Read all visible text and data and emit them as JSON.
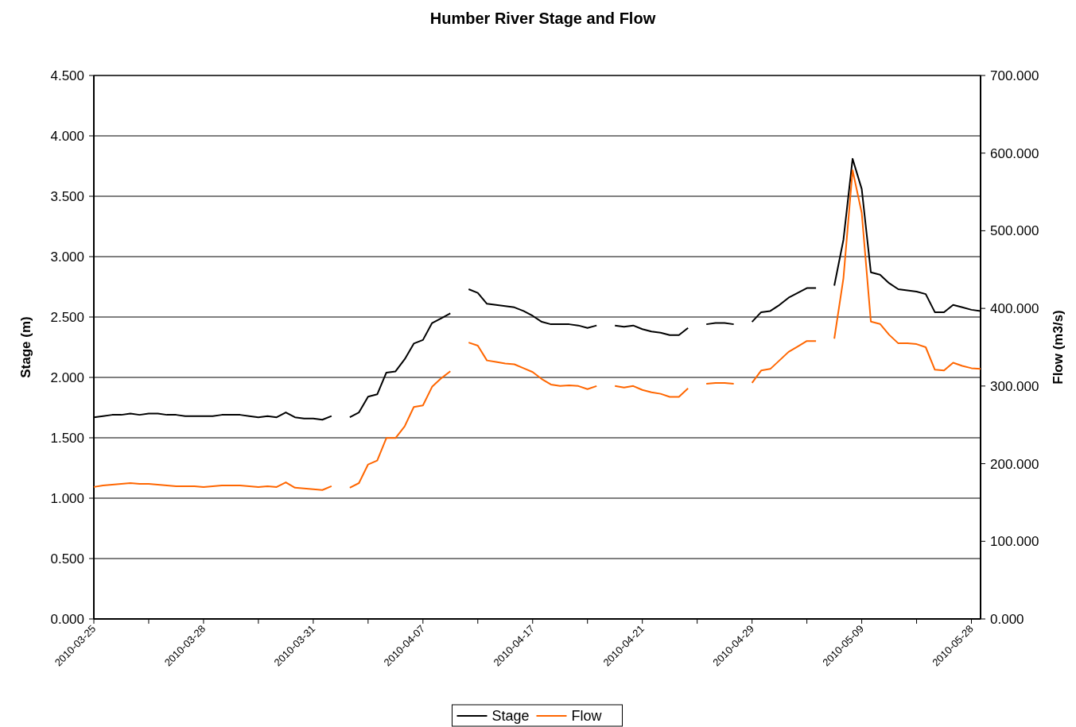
{
  "chart_data": {
    "type": "line",
    "title": "Humber River Stage and Flow",
    "ylabel": "Stage (m)",
    "y2label": "Flow (m3/s)",
    "categories": [
      "2010-03-25",
      null,
      null,
      null,
      null,
      null,
      null,
      null,
      null,
      null,
      null,
      null,
      "2010-03-28",
      null,
      null,
      null,
      null,
      null,
      null,
      null,
      null,
      null,
      null,
      null,
      "2010-03-31",
      null,
      null,
      null,
      null,
      null,
      null,
      null,
      null,
      null,
      null,
      null,
      "2010-04-07",
      null,
      null,
      null,
      null,
      null,
      null,
      null,
      null,
      null,
      null,
      null,
      "2010-04-17",
      null,
      null,
      null,
      null,
      null,
      null,
      null,
      null,
      null,
      null,
      null,
      "2010-04-21",
      null,
      null,
      null,
      null,
      null,
      null,
      null,
      null,
      null,
      null,
      null,
      "2010-04-29",
      null,
      null,
      null,
      null,
      null,
      null,
      null,
      null,
      null,
      null,
      null,
      "2010-05-09",
      null,
      null,
      null,
      null,
      null,
      null,
      null,
      null,
      null,
      null,
      null,
      "2010-05-28",
      null
    ],
    "series": [
      {
        "name": "Stage",
        "color": "#000000",
        "values": [
          1.67,
          1.68,
          1.69,
          1.69,
          1.7,
          1.69,
          1.7,
          1.7,
          1.69,
          1.69,
          1.68,
          1.68,
          1.68,
          1.68,
          1.69,
          1.69,
          1.69,
          1.68,
          1.67,
          1.68,
          1.67,
          1.71,
          1.67,
          1.66,
          1.66,
          1.65,
          1.68,
          null,
          1.67,
          1.71,
          1.84,
          1.86,
          2.04,
          2.05,
          2.15,
          2.28,
          2.31,
          2.45,
          2.49,
          2.53,
          null,
          2.73,
          2.7,
          2.61,
          2.6,
          2.59,
          2.58,
          2.55,
          2.51,
          2.46,
          2.44,
          2.44,
          2.44,
          2.43,
          2.41,
          2.43,
          null,
          2.43,
          2.42,
          2.43,
          2.4,
          2.38,
          2.37,
          2.35,
          2.35,
          2.41,
          null,
          2.44,
          2.45,
          2.45,
          2.44,
          null,
          2.46,
          2.54,
          2.55,
          2.6,
          2.66,
          2.7,
          2.74,
          2.74,
          null,
          2.76,
          3.14,
          3.81,
          3.56,
          2.87,
          2.85,
          2.78,
          2.73,
          2.72,
          2.71,
          2.69,
          2.54,
          2.54,
          2.6,
          2.58,
          2.56,
          2.55
        ]
      },
      {
        "name": "Flow",
        "color": "#ff6600",
        "axis": "y2",
        "values": [
          170,
          172,
          173,
          174,
          175,
          174,
          174,
          173,
          172,
          171,
          171,
          171,
          170,
          171,
          172,
          172,
          172,
          171,
          170,
          171,
          170,
          176,
          169,
          168,
          167,
          166,
          171,
          null,
          169,
          175,
          199,
          204,
          233,
          233,
          248,
          273,
          275,
          299,
          310,
          319,
          null,
          356,
          352,
          333,
          331,
          329,
          328,
          323,
          318,
          309,
          302,
          300,
          301,
          300,
          296,
          300,
          null,
          300,
          298,
          300,
          295,
          292,
          290,
          286,
          286,
          297,
          null,
          303,
          304,
          304,
          303,
          null,
          304,
          320,
          322,
          333,
          344,
          351,
          358,
          358,
          null,
          361,
          439,
          578,
          523,
          383,
          380,
          366,
          355,
          355,
          354,
          350,
          321,
          320,
          330,
          326,
          323,
          322
        ]
      }
    ],
    "ylim": [
      0,
      4.5
    ],
    "yticks": [
      {
        "value": 0,
        "label": "0.000"
      },
      {
        "value": 0.5,
        "label": "0.500"
      },
      {
        "value": 1,
        "label": "1.000"
      },
      {
        "value": 1.5,
        "label": "1.500"
      },
      {
        "value": 2,
        "label": "2.000"
      },
      {
        "value": 2.5,
        "label": "2.500"
      },
      {
        "value": 3,
        "label": "3.000"
      },
      {
        "value": 3.5,
        "label": "3.500"
      },
      {
        "value": 4,
        "label": "4.000"
      },
      {
        "value": 4.5,
        "label": "4.500"
      }
    ],
    "y2lim": [
      0,
      700
    ],
    "y2ticks": [
      {
        "value": 0,
        "label": "0.000"
      },
      {
        "value": 100,
        "label": "100.000"
      },
      {
        "value": 200,
        "label": "200.000"
      },
      {
        "value": 300,
        "label": "300.000"
      },
      {
        "value": 400,
        "label": "400.000"
      },
      {
        "value": 500,
        "label": "500.000"
      },
      {
        "value": 600,
        "label": "600.000"
      },
      {
        "value": 700,
        "label": "700.000"
      }
    ],
    "grid": "y",
    "legend": "bottom",
    "marker": "none",
    "line_style": "solid"
  }
}
